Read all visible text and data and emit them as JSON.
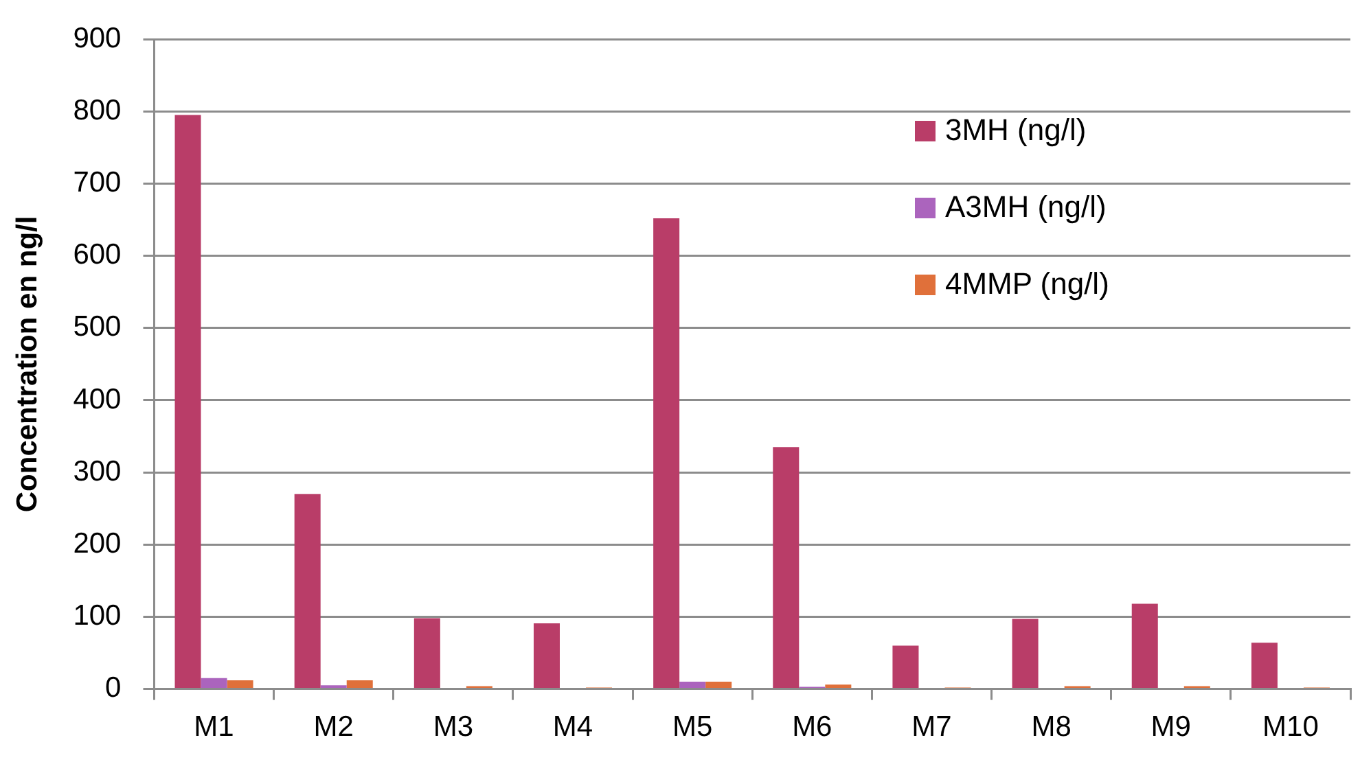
{
  "chart_data": {
    "type": "bar",
    "ylabel": "Concentration en ng/l",
    "categories": [
      "M1",
      "M2",
      "M3",
      "M4",
      "M5",
      "M6",
      "M7",
      "M8",
      "M9",
      "M10"
    ],
    "series": [
      {
        "name": "3MH (ng/l)",
        "color": "#b93d68",
        "values": [
          795,
          270,
          98,
          91,
          652,
          335,
          60,
          97,
          118,
          64
        ]
      },
      {
        "name": "A3MH (ng/l)",
        "color": "#ab64bd",
        "values": [
          15,
          5,
          0,
          0,
          10,
          3,
          0,
          0,
          0,
          0
        ]
      },
      {
        "name": "4MMP (ng/l)",
        "color": "#e0703a",
        "values": [
          12,
          12,
          4,
          2,
          10,
          6,
          2,
          4,
          4,
          2
        ]
      }
    ],
    "ylim": [
      0,
      900
    ],
    "yticks": [
      0,
      100,
      200,
      300,
      400,
      500,
      600,
      700,
      800,
      900
    ],
    "grid": "y",
    "legend": "top right"
  }
}
